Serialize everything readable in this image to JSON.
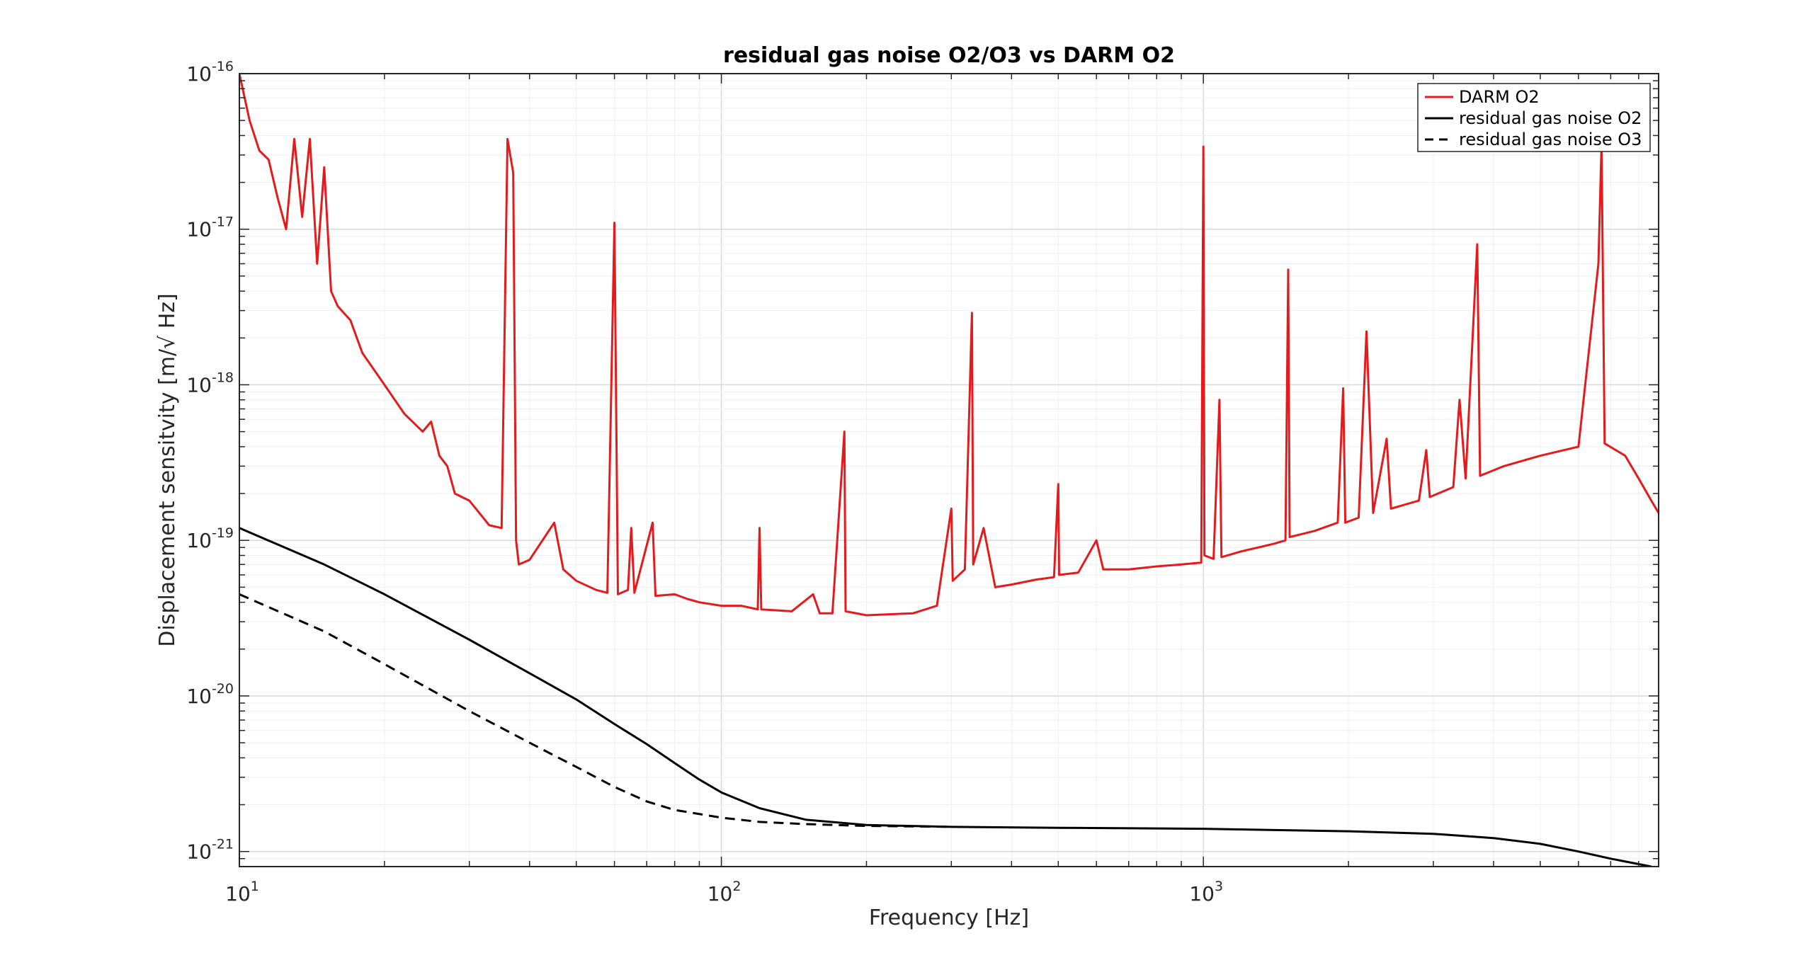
{
  "chart_data": {
    "type": "line",
    "title": "residual gas noise O2/O3 vs DARM O2",
    "xlabel": "Frequency [Hz]",
    "ylabel": "Displacement sensitvity [m/√ Hz]",
    "xscale": "log",
    "yscale": "log",
    "xlim": [
      10,
      8800
    ],
    "ylim": [
      8e-22,
      1e-16
    ],
    "grid": true,
    "legend_position": "top-right",
    "x_ticks": [
      {
        "value": 10,
        "base": "10",
        "exp": "1"
      },
      {
        "value": 100,
        "base": "10",
        "exp": "2"
      },
      {
        "value": 1000,
        "base": "10",
        "exp": "3"
      }
    ],
    "y_ticks": [
      {
        "value": 1e-21,
        "base": "10",
        "exp": "-21"
      },
      {
        "value": 1e-20,
        "base": "10",
        "exp": "-20"
      },
      {
        "value": 1e-19,
        "base": "10",
        "exp": "-19"
      },
      {
        "value": 1e-18,
        "base": "10",
        "exp": "-18"
      },
      {
        "value": 1e-17,
        "base": "10",
        "exp": "-17"
      },
      {
        "value": 1e-16,
        "base": "10",
        "exp": "-16"
      }
    ],
    "series": [
      {
        "name": "DARM O2",
        "color": "#e41a1c",
        "style": "solid",
        "points": [
          [
            10,
            1e-16
          ],
          [
            10.5,
            5e-17
          ],
          [
            11,
            3.2e-17
          ],
          [
            11.5,
            2.8e-17
          ],
          [
            12,
            1.6e-17
          ],
          [
            12.5,
            1e-17
          ],
          [
            13,
            3.8e-17
          ],
          [
            13.5,
            1.2e-17
          ],
          [
            14,
            3.8e-17
          ],
          [
            14.5,
            6e-18
          ],
          [
            15,
            2.5e-17
          ],
          [
            15.5,
            4e-18
          ],
          [
            16,
            3.2e-18
          ],
          [
            17,
            2.6e-18
          ],
          [
            18,
            1.6e-18
          ],
          [
            20,
            1e-18
          ],
          [
            22,
            6.5e-19
          ],
          [
            24,
            5e-19
          ],
          [
            25,
            5.8e-19
          ],
          [
            26,
            3.5e-19
          ],
          [
            27,
            3e-19
          ],
          [
            28,
            2e-19
          ],
          [
            30,
            1.8e-19
          ],
          [
            33,
            1.25e-19
          ],
          [
            35,
            1.2e-19
          ],
          [
            36,
            3.8e-17
          ],
          [
            37,
            2.3e-17
          ],
          [
            37.5,
            1e-19
          ],
          [
            38,
            7e-20
          ],
          [
            40,
            7.5e-20
          ],
          [
            45,
            1.3e-19
          ],
          [
            47,
            6.5e-20
          ],
          [
            50,
            5.5e-20
          ],
          [
            55,
            4.8e-20
          ],
          [
            58,
            4.6e-20
          ],
          [
            60,
            1.1e-17
          ],
          [
            61,
            4.5e-20
          ],
          [
            64,
            4.8e-20
          ],
          [
            65,
            1.2e-19
          ],
          [
            66,
            4.6e-20
          ],
          [
            72,
            1.3e-19
          ],
          [
            73,
            4.4e-20
          ],
          [
            80,
            4.5e-20
          ],
          [
            85,
            4.2e-20
          ],
          [
            90,
            4e-20
          ],
          [
            100,
            3.8e-20
          ],
          [
            110,
            3.8e-20
          ],
          [
            119,
            3.6e-20
          ],
          [
            120,
            1.2e-19
          ],
          [
            121,
            3.6e-20
          ],
          [
            140,
            3.5e-20
          ],
          [
            155,
            4.5e-20
          ],
          [
            160,
            3.4e-20
          ],
          [
            170,
            3.4e-20
          ],
          [
            180,
            5e-19
          ],
          [
            181,
            3.5e-20
          ],
          [
            200,
            3.3e-20
          ],
          [
            250,
            3.4e-20
          ],
          [
            280,
            3.8e-20
          ],
          [
            300,
            1.6e-19
          ],
          [
            302,
            5.5e-20
          ],
          [
            320,
            6.5e-20
          ],
          [
            331,
            2.9e-18
          ],
          [
            333,
            7e-20
          ],
          [
            350,
            1.2e-19
          ],
          [
            370,
            5e-20
          ],
          [
            400,
            5.2e-20
          ],
          [
            450,
            5.6e-20
          ],
          [
            490,
            5.8e-20
          ],
          [
            500,
            2.3e-19
          ],
          [
            502,
            6e-20
          ],
          [
            550,
            6.2e-20
          ],
          [
            600,
            1e-19
          ],
          [
            620,
            6.5e-20
          ],
          [
            700,
            6.5e-20
          ],
          [
            800,
            6.8e-20
          ],
          [
            900,
            7e-20
          ],
          [
            990,
            7.2e-20
          ],
          [
            1000,
            3.4e-17
          ],
          [
            1005,
            8e-20
          ],
          [
            1050,
            7.6e-20
          ],
          [
            1080,
            8e-19
          ],
          [
            1090,
            7.8e-20
          ],
          [
            1200,
            8.5e-20
          ],
          [
            1400,
            9.5e-20
          ],
          [
            1480,
            1e-19
          ],
          [
            1500,
            5.5e-18
          ],
          [
            1510,
            1.05e-19
          ],
          [
            1700,
            1.15e-19
          ],
          [
            1900,
            1.3e-19
          ],
          [
            1950,
            9.5e-19
          ],
          [
            1970,
            1.3e-19
          ],
          [
            2100,
            1.4e-19
          ],
          [
            2180,
            2.2e-18
          ],
          [
            2250,
            1.5e-19
          ],
          [
            2400,
            4.5e-19
          ],
          [
            2450,
            1.6e-19
          ],
          [
            2800,
            1.8e-19
          ],
          [
            2900,
            3.8e-19
          ],
          [
            2950,
            1.9e-19
          ],
          [
            3300,
            2.2e-19
          ],
          [
            3400,
            8e-19
          ],
          [
            3500,
            2.5e-19
          ],
          [
            3700,
            8e-18
          ],
          [
            3750,
            2.6e-19
          ],
          [
            4200,
            3e-19
          ],
          [
            5000,
            3.5e-19
          ],
          [
            6000,
            4e-19
          ],
          [
            6600,
            6e-18
          ],
          [
            6700,
            3.5e-17
          ],
          [
            6800,
            4.2e-19
          ],
          [
            7500,
            3.5e-19
          ],
          [
            8000,
            2.5e-19
          ],
          [
            8500,
            1.8e-19
          ],
          [
            8800,
            1.5e-19
          ]
        ]
      },
      {
        "name": "residual gas noise O2",
        "color": "#000000",
        "style": "solid",
        "points": [
          [
            10,
            1.2e-19
          ],
          [
            15,
            7e-20
          ],
          [
            20,
            4.5e-20
          ],
          [
            30,
            2.3e-20
          ],
          [
            40,
            1.4e-20
          ],
          [
            50,
            9.5e-21
          ],
          [
            60,
            6.6e-21
          ],
          [
            70,
            4.9e-21
          ],
          [
            80,
            3.7e-21
          ],
          [
            90,
            2.9e-21
          ],
          [
            100,
            2.4e-21
          ],
          [
            120,
            1.9e-21
          ],
          [
            150,
            1.6e-21
          ],
          [
            200,
            1.48e-21
          ],
          [
            300,
            1.44e-21
          ],
          [
            500,
            1.42e-21
          ],
          [
            1000,
            1.4e-21
          ],
          [
            2000,
            1.35e-21
          ],
          [
            3000,
            1.3e-21
          ],
          [
            4000,
            1.22e-21
          ],
          [
            5000,
            1.12e-21
          ],
          [
            6000,
            1e-21
          ],
          [
            7000,
            9e-22
          ],
          [
            8000,
            8.3e-22
          ],
          [
            8500,
            8e-22
          ]
        ]
      },
      {
        "name": "residual gas noise O3",
        "color": "#000000",
        "style": "dashed",
        "points": [
          [
            10,
            4.5e-20
          ],
          [
            15,
            2.6e-20
          ],
          [
            20,
            1.6e-20
          ],
          [
            30,
            8e-21
          ],
          [
            40,
            5e-21
          ],
          [
            50,
            3.5e-21
          ],
          [
            60,
            2.6e-21
          ],
          [
            70,
            2.1e-21
          ],
          [
            80,
            1.85e-21
          ],
          [
            100,
            1.65e-21
          ],
          [
            120,
            1.55e-21
          ],
          [
            150,
            1.5e-21
          ],
          [
            200,
            1.46e-21
          ],
          [
            250,
            1.45e-21
          ],
          [
            300,
            1.44e-21
          ]
        ]
      }
    ]
  }
}
